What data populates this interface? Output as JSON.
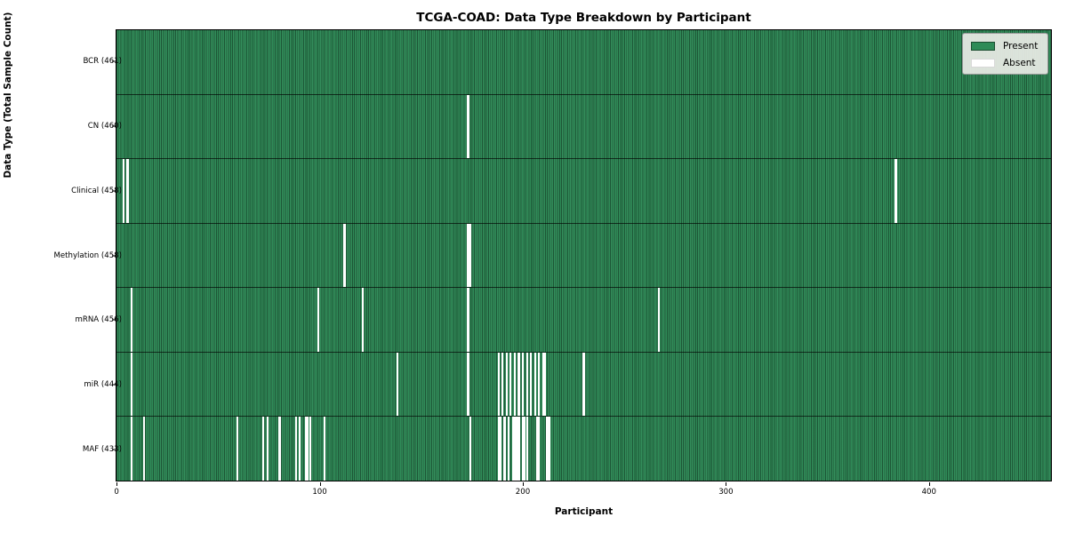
{
  "title": "TCGA-COAD: Data Type Breakdown by Participant",
  "xlabel": "Participant",
  "ylabel": "Data Type (Total Sample Count)",
  "legend": {
    "present_label": "Present",
    "absent_label": "Absent"
  },
  "colors": {
    "present": "#2e8b57",
    "absent": "#ffffff",
    "bar_edge": "#1b4d30",
    "legend_bg": "#eaece6"
  },
  "chart_data": {
    "type": "heatmap",
    "title": "TCGA-COAD: Data Type Breakdown by Participant",
    "xlabel": "Participant",
    "ylabel": "Data Type (Total Sample Count)",
    "x_range": [
      0,
      461
    ],
    "x_ticks": [
      0,
      100,
      200,
      300,
      400
    ],
    "n_participants": 461,
    "legend": [
      "Present",
      "Absent"
    ],
    "legend_position": "upper right",
    "rows": [
      {
        "label": "BCR (461)",
        "name": "BCR",
        "total": 461,
        "absent": []
      },
      {
        "label": "CN (460)",
        "name": "CN",
        "total": 460,
        "absent": [
          173
        ]
      },
      {
        "label": "Clinical (458)",
        "name": "Clinical",
        "total": 458,
        "absent": [
          3,
          5,
          384
        ]
      },
      {
        "label": "Methylation (458)",
        "name": "Methylation",
        "total": 458,
        "absent": [
          112,
          173,
          174
        ]
      },
      {
        "label": "mRNA (456)",
        "name": "mRNA",
        "total": 456,
        "absent": [
          7,
          99,
          121,
          173,
          267
        ]
      },
      {
        "label": "miR (444)",
        "name": "miR",
        "total": 444,
        "absent": [
          7,
          138,
          173,
          188,
          190,
          192,
          194,
          196,
          198,
          200,
          202,
          204,
          206,
          208,
          210,
          211,
          230
        ]
      },
      {
        "label": "MAF (433)",
        "name": "MAF",
        "total": 433,
        "absent": [
          7,
          13,
          59,
          72,
          74,
          80,
          88,
          90,
          93,
          94,
          95,
          102,
          174,
          188,
          189,
          191,
          193,
          195,
          196,
          197,
          198,
          200,
          201,
          202,
          207,
          208,
          212,
          213
        ]
      }
    ]
  }
}
